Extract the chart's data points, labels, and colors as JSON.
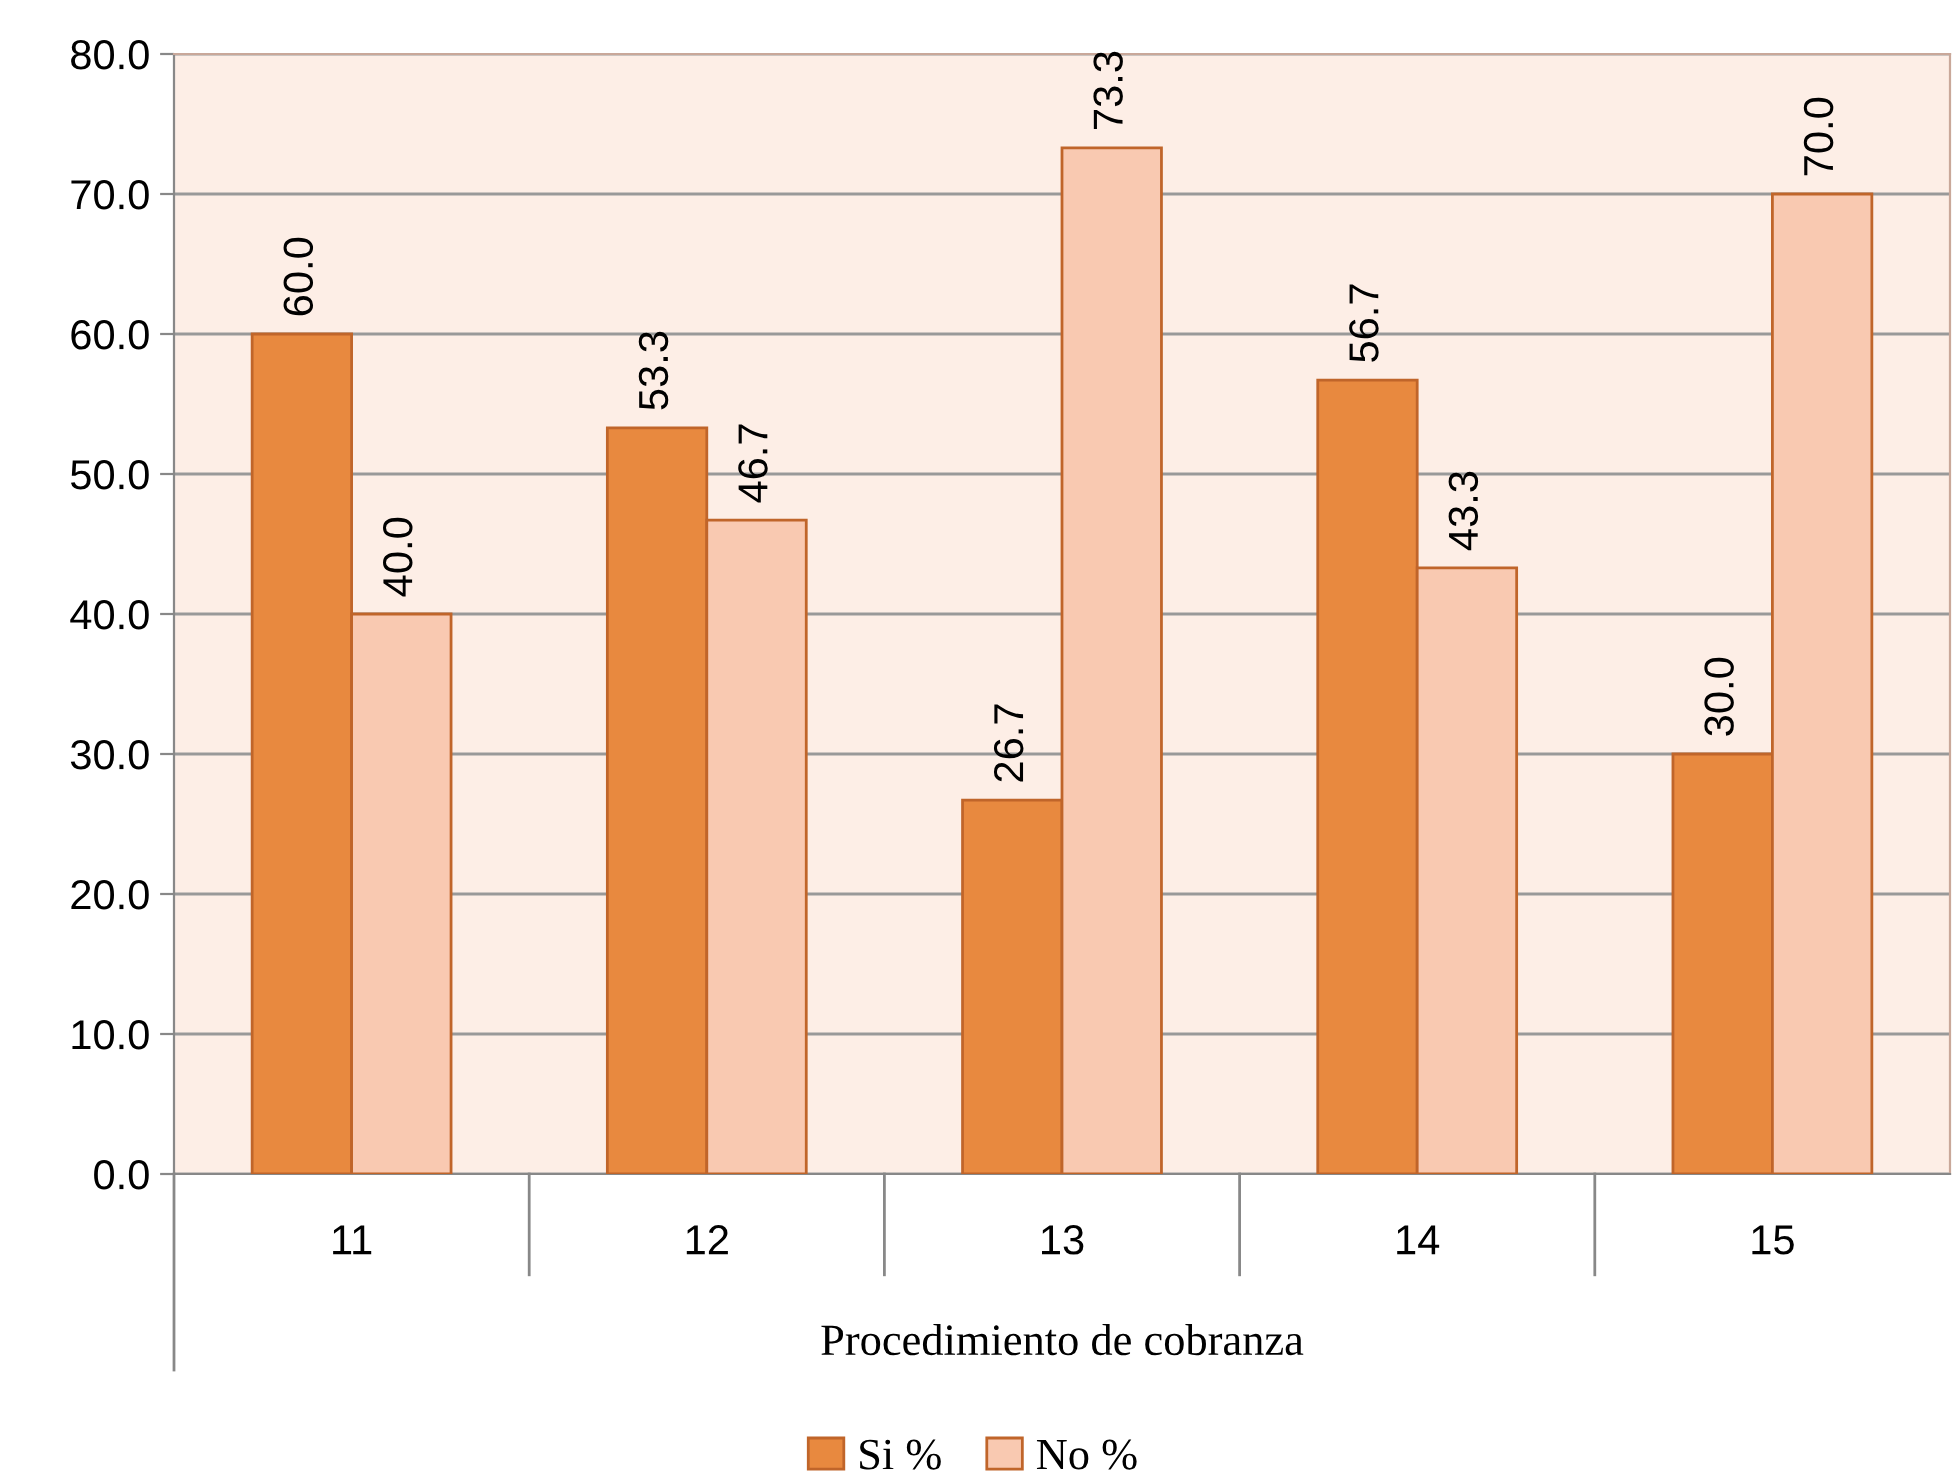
{
  "chart_data": {
    "type": "bar",
    "xlabel": "Procedimiento de cobranza",
    "categories": [
      "11",
      "12",
      "13",
      "14",
      "15"
    ],
    "series": [
      {
        "name": "Si %",
        "color": "#e8893f",
        "values": [
          60.0,
          53.3,
          26.7,
          56.7,
          30.0
        ],
        "value_labels": [
          "60.0",
          "53.3",
          "26.7",
          "56.7",
          "30.0"
        ]
      },
      {
        "name": "No %",
        "color": "#f9c9b1",
        "values": [
          40.0,
          46.7,
          73.3,
          43.3,
          70.0
        ],
        "value_labels": [
          "40.0",
          "46.7",
          "73.3",
          "43.3",
          "70.0"
        ]
      }
    ],
    "ylim": [
      0,
      80
    ],
    "yticks": [
      {
        "value": 0,
        "label": "0.0"
      },
      {
        "value": 10,
        "label": "10.0"
      },
      {
        "value": 20,
        "label": "20.0"
      },
      {
        "value": 30,
        "label": "30.0"
      },
      {
        "value": 40,
        "label": "40.0"
      },
      {
        "value": 50,
        "label": "50.0"
      },
      {
        "value": 60,
        "label": "60.0"
      },
      {
        "value": 70,
        "label": "70.0"
      },
      {
        "value": 80,
        "label": "80.0"
      }
    ],
    "grid": "y",
    "legend": "bottom"
  }
}
